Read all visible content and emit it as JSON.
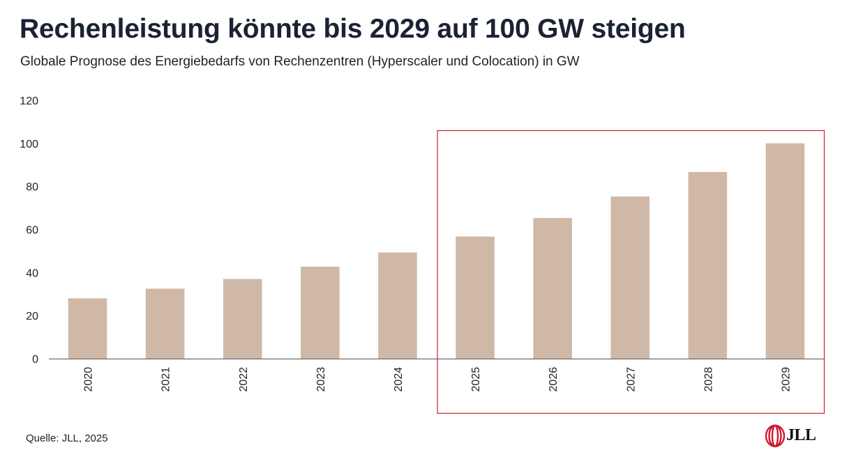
{
  "header": {
    "title": "Rechenleistung könnte bis 2029 auf 100 GW steigen",
    "subtitle": "Globale Prognose des Energiebedarfs von Rechenzentren (Hyperscaler und Colocation) in GW"
  },
  "footer": {
    "source": "Quelle: JLL, 2025",
    "logo_text": "JLL"
  },
  "colors": {
    "bar": "#d0b8a6",
    "highlight_box": "#c8202f",
    "axis": "#555555",
    "logo_red": "#d3172e"
  },
  "chart_data": {
    "type": "bar",
    "categories": [
      "2020",
      "2021",
      "2022",
      "2023",
      "2024",
      "2025",
      "2026",
      "2027",
      "2028",
      "2029"
    ],
    "values": [
      28,
      32.5,
      37,
      42.7,
      49.3,
      56.7,
      65.3,
      75.3,
      86.7,
      100
    ],
    "yticks": [
      0,
      20,
      40,
      60,
      80,
      100,
      120
    ],
    "ylim": [
      0,
      120
    ],
    "title": "",
    "xlabel": "",
    "ylabel": "",
    "highlight_range": [
      "2025",
      "2029"
    ],
    "grid": false,
    "legend": "none"
  }
}
